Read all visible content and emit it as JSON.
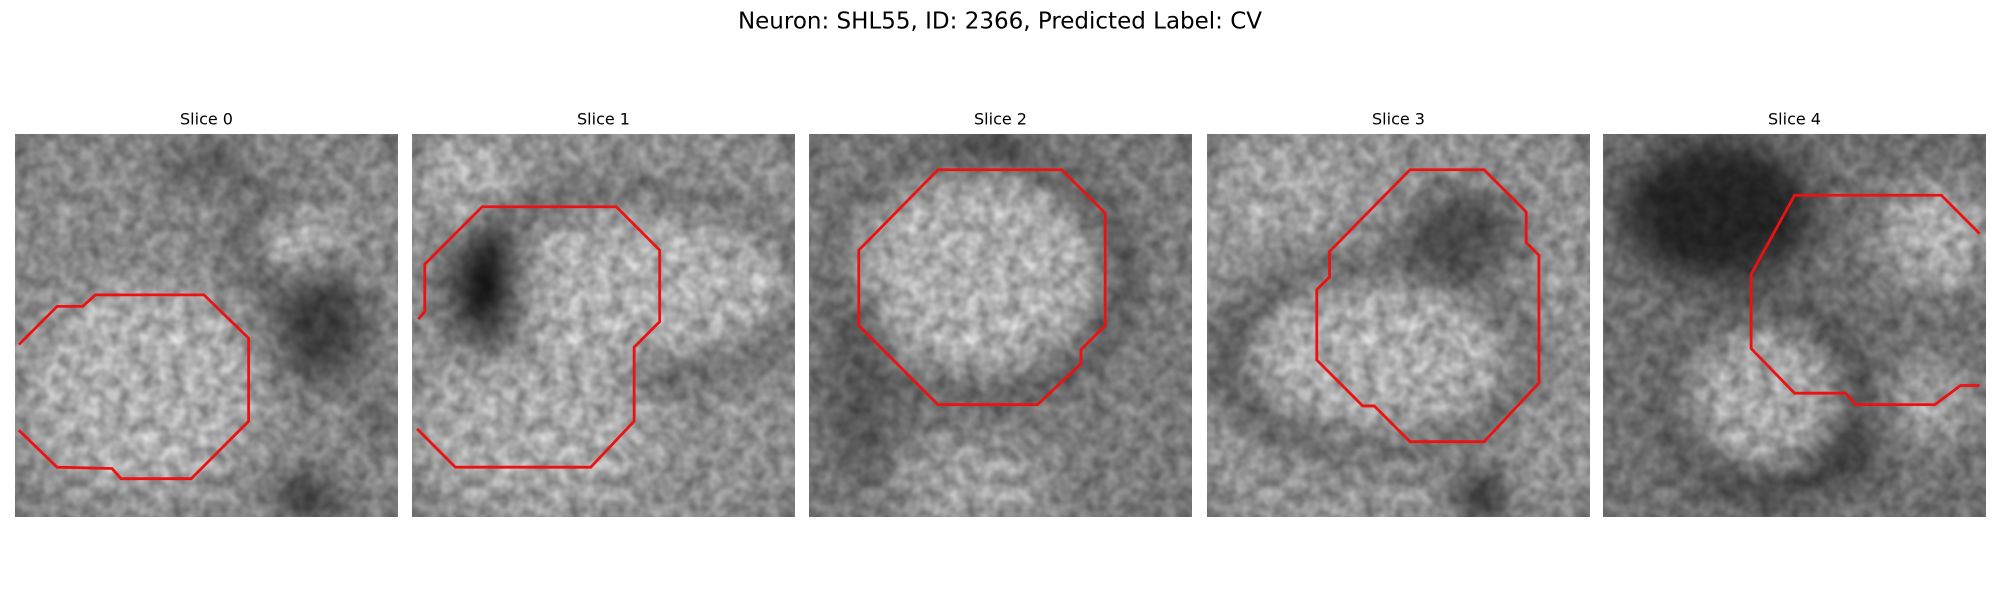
{
  "title": "Neuron: SHL55, ID: 2366, Predicted Label: CV",
  "slices": [
    "Slice 0",
    "Slice 1",
    "Slice 2",
    "Slice 3",
    "Slice 4"
  ]
}
